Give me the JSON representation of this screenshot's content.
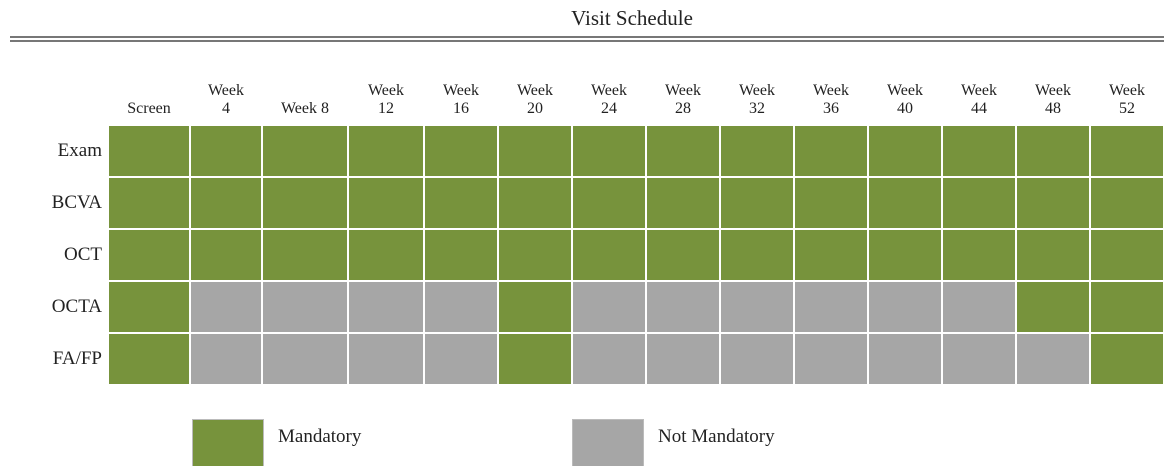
{
  "title": "Visit Schedule",
  "columns": [
    "Screen",
    "Week 4",
    "Week 8",
    "Week 12",
    "Week 16",
    "Week 20",
    "Week 24",
    "Week 28",
    "Week 32",
    "Week 36",
    "Week 40",
    "Week 44",
    "Week 48",
    "Week 52"
  ],
  "legend": [
    {
      "label": "Mandatory",
      "color": "#77933c"
    },
    {
      "label": "Not Mandatory",
      "color": "#a6a6a6"
    }
  ],
  "rows": [
    {
      "label": "Exam",
      "cells": [
        0,
        0,
        0,
        0,
        0,
        0,
        0,
        0,
        0,
        0,
        0,
        0,
        0,
        0
      ]
    },
    {
      "label": "BCVA",
      "cells": [
        0,
        0,
        0,
        0,
        0,
        0,
        0,
        0,
        0,
        0,
        0,
        0,
        0,
        0
      ]
    },
    {
      "label": "OCT",
      "cells": [
        0,
        0,
        0,
        0,
        0,
        0,
        0,
        0,
        0,
        0,
        0,
        0,
        0,
        0
      ]
    },
    {
      "label": "OCTA",
      "cells": [
        0,
        1,
        1,
        1,
        1,
        0,
        1,
        1,
        1,
        1,
        1,
        1,
        0,
        0
      ]
    },
    {
      "label": "FA/FP",
      "cells": [
        0,
        1,
        1,
        1,
        1,
        0,
        1,
        1,
        1,
        1,
        1,
        1,
        1,
        0
      ]
    }
  ]
}
